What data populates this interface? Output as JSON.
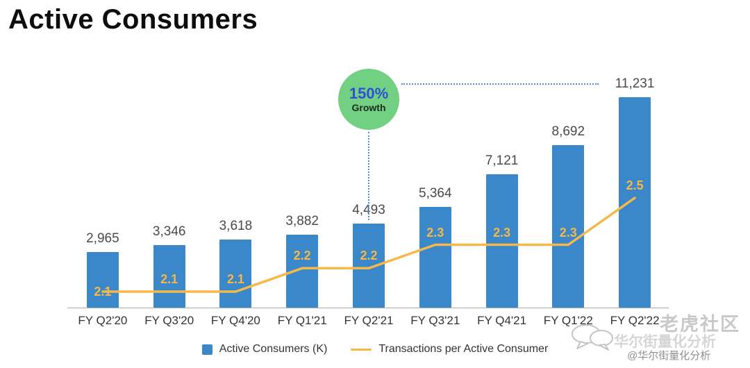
{
  "title": "Active Consumers",
  "badge": {
    "percent": "150%",
    "label": "Growth"
  },
  "legend": {
    "bar_label": "Active Consumers (K)",
    "line_label": "Transactions per Active Consumer"
  },
  "watermark": {
    "community": "老虎社区",
    "brand": "华尔街量化分析",
    "handle": "@华尔街量化分析",
    "bubbles_icon": "chat-bubbles-icon"
  },
  "colors": {
    "bar": "#3a87c9",
    "line": "#f6b84a",
    "badge_bg": "#72d083",
    "badge_percent_text": "#2f4fd8",
    "dotted_line": "#4a90e2",
    "value_label": "#4a4a4a"
  },
  "chart_data": {
    "type": "bar",
    "title": "Active Consumers",
    "categories": [
      "FY Q2'20",
      "FY Q3'20",
      "FY Q4'20",
      "FY Q1'21",
      "FY Q2'21",
      "FY Q3'21",
      "FY Q4'21",
      "FY Q1'22",
      "FY Q2'22"
    ],
    "series": [
      {
        "name": "Active Consumers (K)",
        "type": "bar",
        "values": [
          2965,
          3346,
          3618,
          3882,
          4493,
          5364,
          7121,
          8692,
          11231
        ],
        "labels": [
          "2,965",
          "3,346",
          "3,618",
          "3,882",
          "4,493",
          "5,364",
          "7,121",
          "8,692",
          "11,231"
        ]
      },
      {
        "name": "Transactions per Active Consumer",
        "type": "line",
        "values": [
          2.1,
          2.1,
          2.1,
          2.2,
          2.2,
          2.3,
          2.3,
          2.3,
          2.5
        ]
      }
    ],
    "annotation": {
      "percent": "150%",
      "label": "Growth",
      "from_category": "FY Q2'21",
      "to_category": "FY Q2'22"
    },
    "legend_position": "bottom",
    "grid": false,
    "ylim_bar": [
      0,
      11231
    ],
    "ylim_line": [
      2.1,
      2.5
    ]
  }
}
